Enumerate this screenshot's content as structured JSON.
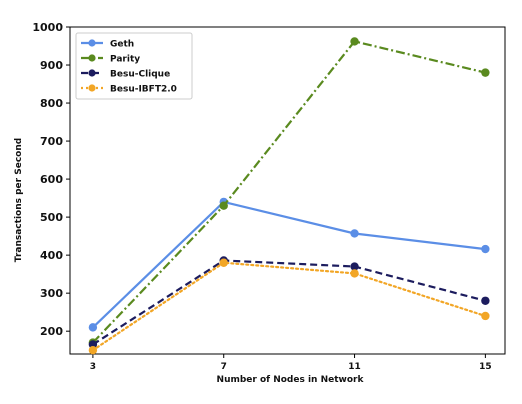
{
  "chart_data": {
    "type": "line",
    "xlabel": "Number of Nodes in Network",
    "ylabel": "Transactions per Second",
    "x": [
      3,
      7,
      11,
      15
    ],
    "x_tick_labels": [
      "3",
      "7",
      "11",
      "15"
    ],
    "y_ticks": [
      200,
      300,
      400,
      500,
      600,
      700,
      800,
      900,
      1000
    ],
    "y_tick_labels": [
      "200",
      "300",
      "400",
      "500",
      "600",
      "700",
      "800",
      "900",
      "1000"
    ],
    "xlim": [
      2.3,
      15.6
    ],
    "ylim": [
      140,
      1000
    ],
    "grid": false,
    "legend_position": "top-left",
    "series": [
      {
        "name": "Geth",
        "values": [
          210,
          540,
          457,
          416
        ],
        "color": "#5b8ee6",
        "dash": "solid"
      },
      {
        "name": "Parity",
        "values": [
          170,
          530,
          962,
          880
        ],
        "color": "#5a8a1f",
        "dash": "dash-dot"
      },
      {
        "name": "Besu-Clique",
        "values": [
          165,
          386,
          370,
          280
        ],
        "color": "#1c1c5e",
        "dash": "dashed"
      },
      {
        "name": "Besu-IBFT2.0",
        "values": [
          150,
          380,
          352,
          240
        ],
        "color": "#f2a626",
        "dash": "dotted"
      }
    ]
  }
}
